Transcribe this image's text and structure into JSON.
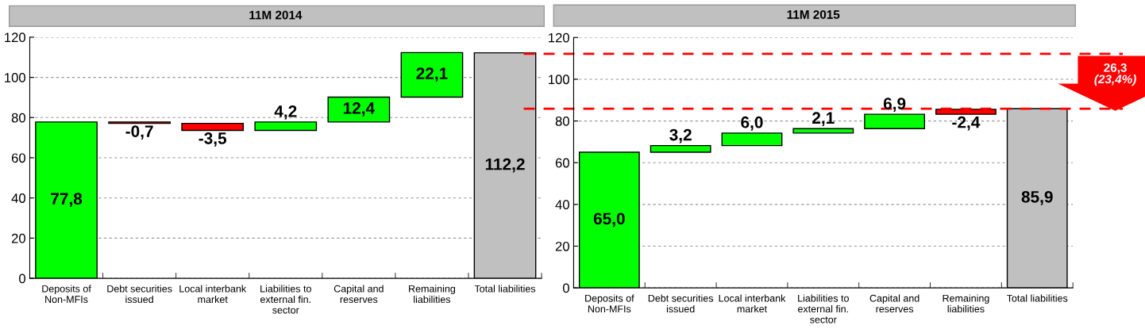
{
  "chart_data": [
    {
      "type": "bar",
      "title": "11M 2014",
      "categories": [
        "Deposits of\nNon-MFIs",
        "Debt securities\nissued",
        "Local interbank\nmarket",
        "Liabilities to\nexternal fin.\nsector",
        "Capital and\nreserves",
        "Remaining\nliabilities",
        "Total liabilities"
      ],
      "values": [
        77.8,
        -0.7,
        -3.5,
        4.2,
        12.4,
        22.1,
        112.2
      ],
      "base": [
        0,
        77.8,
        77.1,
        73.6,
        77.8,
        90.2,
        0
      ],
      "colors": [
        "#00ff00",
        "#ff0000",
        "#ff0000",
        "#00ff00",
        "#00ff00",
        "#00ff00",
        "#c0c0c0"
      ],
      "value_labels": [
        "77,8",
        "-0,7",
        "-3,5",
        "4,2",
        "12,4",
        "22,1",
        "112,2"
      ],
      "ylim": [
        0,
        120
      ],
      "yticks": [
        0,
        20,
        40,
        60,
        80,
        100,
        120
      ],
      "grid": "y"
    },
    {
      "type": "bar",
      "title": "11M 2015",
      "categories": [
        "Deposits of\nNon-MFIs",
        "Debt securities\nissued",
        "Local interbank\nmarket",
        "Liabilities to\nexternal fin.\nsector",
        "Capital and\nreserves",
        "Remaining\nliabilities",
        "Total liabilities"
      ],
      "values": [
        65.0,
        3.2,
        6.0,
        2.1,
        6.9,
        -2.4,
        85.9
      ],
      "base": [
        0,
        65.0,
        68.2,
        74.2,
        76.3,
        85.6,
        0
      ],
      "colors": [
        "#00ff00",
        "#00ff00",
        "#00ff00",
        "#00ff00",
        "#00ff00",
        "#ff0000",
        "#c0c0c0"
      ],
      "value_labels": [
        "65,0",
        "3,2",
        "6,0",
        "2,1",
        "6,9",
        "-2,4",
        "85,9"
      ],
      "ylim": [
        0,
        120
      ],
      "yticks": [
        0,
        20,
        40,
        60,
        80,
        100,
        120
      ],
      "grid": "y",
      "ref_lines": [
        {
          "axis": "y",
          "value": 112.2,
          "color": "#ff0000",
          "line_style": "dashed"
        },
        {
          "axis": "y",
          "value": 85.9,
          "color": "#ff0000",
          "line_style": "dashed"
        }
      ],
      "annotations": [
        "26,3\n(23,4%)"
      ]
    }
  ]
}
